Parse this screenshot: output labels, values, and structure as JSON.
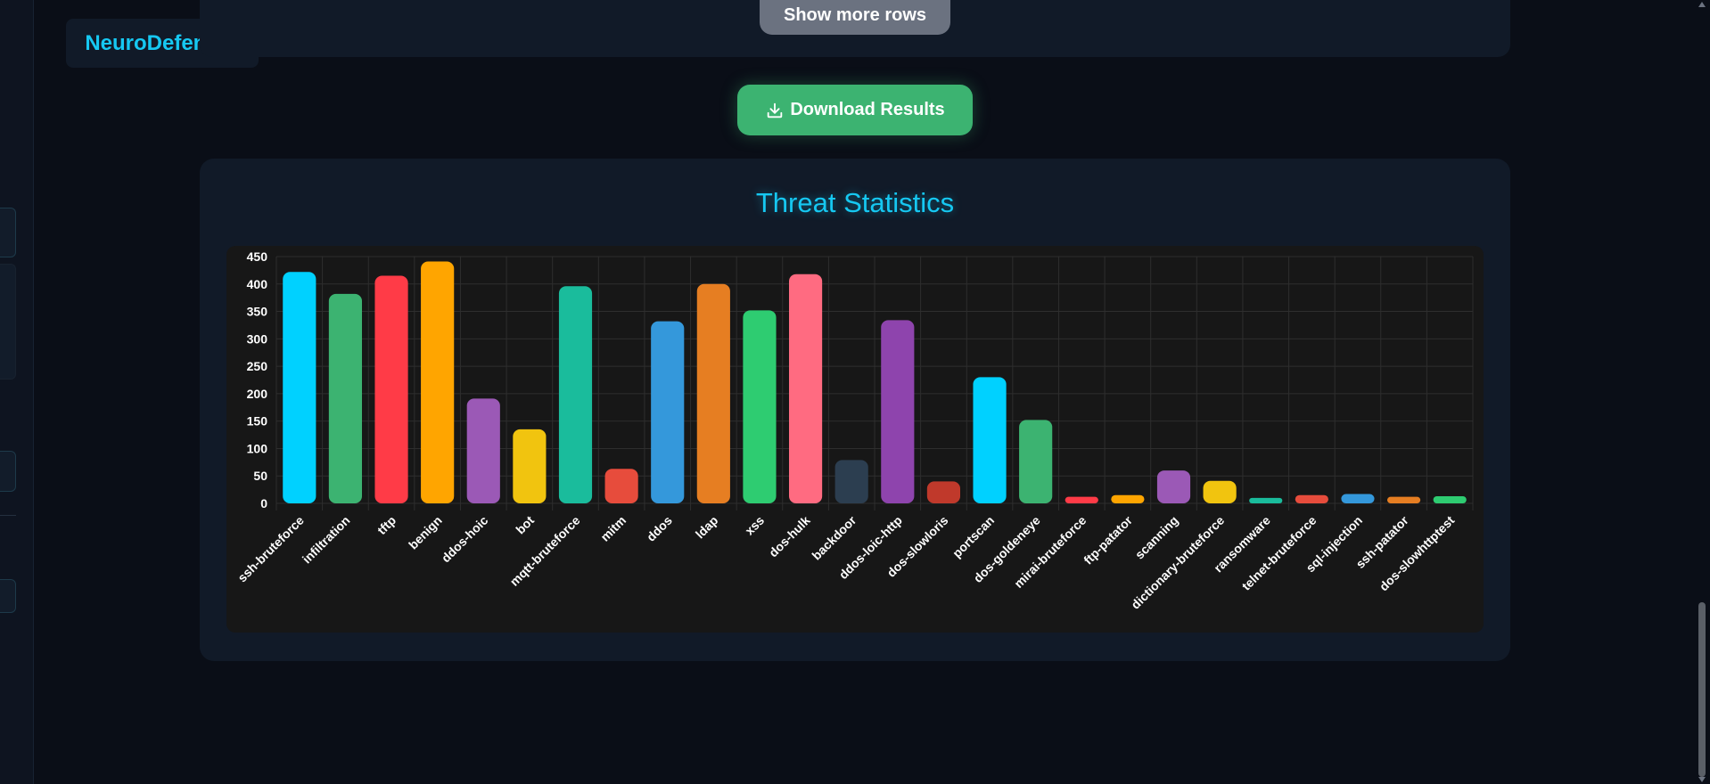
{
  "brand": {
    "name": "NeuroDefender"
  },
  "results": {
    "show_more_label": "Show more rows"
  },
  "download": {
    "label": "Download Results",
    "icon": "download-icon"
  },
  "stats": {
    "title": "Threat Statistics"
  },
  "chart_data": {
    "type": "bar",
    "title": "",
    "xlabel": "",
    "ylabel": "",
    "ylim": [
      0,
      450
    ],
    "yticks": [
      0,
      50,
      100,
      150,
      200,
      250,
      300,
      350,
      400,
      450
    ],
    "grid": true,
    "legend": "none",
    "categories": [
      "ssh-bruteforce",
      "infiltration",
      "tftp",
      "benign",
      "ddos-hoic",
      "bot",
      "mqtt-bruteforce",
      "mitm",
      "ddos",
      "ldap",
      "xss",
      "dos-hulk",
      "backdoor",
      "ddos-loic-http",
      "dos-slowloris",
      "portscan",
      "dos-goldeneye",
      "mirai-bruteforce",
      "ftp-patator",
      "scanning",
      "dictionary-bruteforce",
      "ransomware",
      "telnet-bruteforce",
      "sql-injection",
      "ssh-patator",
      "dos-slowhttptest"
    ],
    "values": [
      422,
      382,
      415,
      441,
      191,
      135,
      396,
      63,
      332,
      400,
      352,
      418,
      79,
      334,
      40,
      230,
      152,
      12,
      15,
      60,
      41,
      10,
      15,
      17,
      12,
      13
    ],
    "colors": [
      "#00d1ff",
      "#3cb371",
      "#ff3b47",
      "#ffa500",
      "#9b59b6",
      "#f1c40f",
      "#1abc9c",
      "#e74c3c",
      "#3498db",
      "#e67e22",
      "#2ecc71",
      "#ff6b81",
      "#2c3e50",
      "#8e44ad",
      "#c0392b",
      "#00d1ff",
      "#3cb371",
      "#ff3b47",
      "#ffa500",
      "#9b59b6",
      "#f1c40f",
      "#1abc9c",
      "#e74c3c",
      "#3498db",
      "#e67e22",
      "#2ecc71"
    ]
  }
}
